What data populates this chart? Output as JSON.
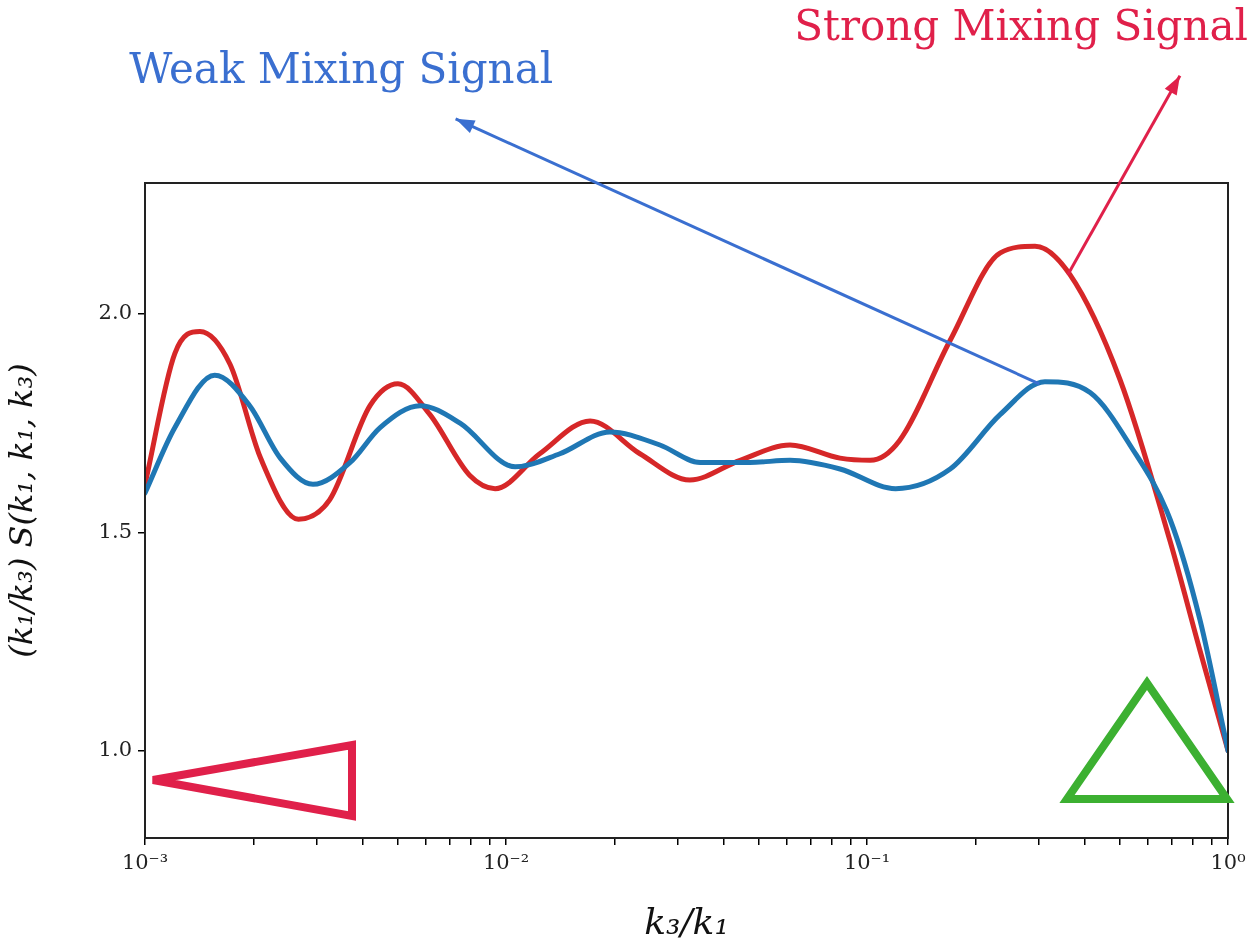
{
  "chart_data": {
    "type": "line",
    "xlabel": "k₃/k₁",
    "ylabel": "(k₁/k₃) S(k₁, k₁, k₃)",
    "log": "x",
    "grid": false,
    "legend": false,
    "marker": "none",
    "line_style": "solid",
    "xlim": [
      0.001,
      1
    ],
    "ylim": [
      0.8,
      2.3
    ],
    "xticks": [
      {
        "value": 0.001,
        "label": "10⁻³"
      },
      {
        "value": 0.002,
        "label": null
      },
      {
        "value": 0.003,
        "label": null
      },
      {
        "value": 0.004,
        "label": null
      },
      {
        "value": 0.005,
        "label": null
      },
      {
        "value": 0.006,
        "label": null
      },
      {
        "value": 0.007,
        "label": null
      },
      {
        "value": 0.008,
        "label": null
      },
      {
        "value": 0.009,
        "label": null
      },
      {
        "value": 0.01,
        "label": "10⁻²"
      },
      {
        "value": 0.02,
        "label": null
      },
      {
        "value": 0.03,
        "label": null
      },
      {
        "value": 0.04,
        "label": null
      },
      {
        "value": 0.05,
        "label": null
      },
      {
        "value": 0.06,
        "label": null
      },
      {
        "value": 0.07,
        "label": null
      },
      {
        "value": 0.08,
        "label": null
      },
      {
        "value": 0.09,
        "label": null
      },
      {
        "value": 0.1,
        "label": "10⁻¹"
      },
      {
        "value": 0.2,
        "label": null
      },
      {
        "value": 0.3,
        "label": null
      },
      {
        "value": 0.4,
        "label": null
      },
      {
        "value": 0.5,
        "label": null
      },
      {
        "value": 0.6,
        "label": null
      },
      {
        "value": 0.7,
        "label": null
      },
      {
        "value": 0.8,
        "label": null
      },
      {
        "value": 0.9,
        "label": null
      },
      {
        "value": 1,
        "label": "10⁰"
      }
    ],
    "yticks": [
      {
        "value": 1.0,
        "label": "1.0"
      },
      {
        "value": 1.5,
        "label": "1.5"
      },
      {
        "value": 2.0,
        "label": "2.0"
      }
    ],
    "series": [
      {
        "color": "#1f77b4",
        "x": [
          0.001,
          0.00121,
          0.00156,
          0.00195,
          0.00237,
          0.00292,
          0.0037,
          0.00448,
          0.00578,
          0.00746,
          0.0106,
          0.0141,
          0.0194,
          0.0267,
          0.0345,
          0.0474,
          0.0612,
          0.0842,
          0.12,
          0.17,
          0.234,
          0.311,
          0.415,
          0.535,
          0.691,
          0.836,
          1
        ],
        "values": [
          1.59,
          1.74,
          1.86,
          1.79,
          1.67,
          1.61,
          1.66,
          1.74,
          1.79,
          1.75,
          1.65,
          1.68,
          1.73,
          1.7,
          1.66,
          1.66,
          1.665,
          1.645,
          1.6,
          1.645,
          1.77,
          1.845,
          1.82,
          1.7,
          1.53,
          1.3,
          1.0
        ]
      },
      {
        "color": "#d62728",
        "x": [
          0.001,
          0.00121,
          0.00142,
          0.00172,
          0.00209,
          0.00266,
          0.00325,
          0.0042,
          0.00502,
          0.00615,
          0.00794,
          0.00933,
          0.0124,
          0.0171,
          0.0235,
          0.0323,
          0.0445,
          0.0612,
          0.0842,
          0.102,
          0.123,
          0.17,
          0.234,
          0.292,
          0.365,
          0.502,
          0.691,
          0.836,
          1
        ],
        "values": [
          1.61,
          1.91,
          1.96,
          1.885,
          1.67,
          1.53,
          1.575,
          1.79,
          1.84,
          1.77,
          1.63,
          1.6,
          1.68,
          1.755,
          1.68,
          1.62,
          1.665,
          1.7,
          1.67,
          1.665,
          1.71,
          1.94,
          2.14,
          2.155,
          2.09,
          1.85,
          1.48,
          1.23,
          1.0
        ]
      }
    ],
    "annotations": [
      {
        "text": "Weak Mixing Signal",
        "x": 0.3,
        "y": 1.84
      },
      {
        "text": "Strong Mixing Signal",
        "x": 0.36,
        "y": 2.09
      }
    ]
  }
}
